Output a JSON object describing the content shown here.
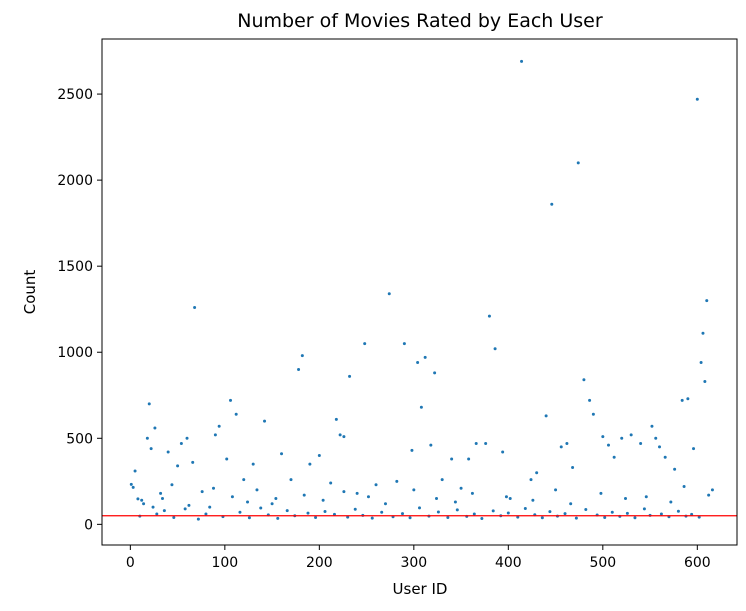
{
  "chart_data": {
    "type": "scatter",
    "title": "Number of Movies Rated by Each User",
    "xlabel": "User ID",
    "ylabel": "Count",
    "xlim": [
      -30,
      642
    ],
    "ylim": [
      -120,
      2820
    ],
    "xticks": [
      0,
      100,
      200,
      300,
      400,
      500,
      600
    ],
    "yticks": [
      0,
      500,
      1000,
      1500,
      2000,
      2500
    ],
    "grid": false,
    "reference_line": {
      "orientation": "horizontal",
      "y": 50,
      "color": "#ff0000"
    },
    "series": [
      {
        "color": "#1f77b4",
        "points": [
          [
            1,
            232
          ],
          [
            3,
            215
          ],
          [
            5,
            310
          ],
          [
            8,
            148
          ],
          [
            10,
            48
          ],
          [
            12,
            140
          ],
          [
            20,
            700
          ],
          [
            26,
            560
          ],
          [
            18,
            500
          ],
          [
            22,
            440
          ],
          [
            34,
            150
          ],
          [
            40,
            420
          ],
          [
            50,
            340
          ],
          [
            54,
            470
          ],
          [
            60,
            500
          ],
          [
            66,
            360
          ],
          [
            68,
            1260
          ],
          [
            76,
            190
          ],
          [
            84,
            100
          ],
          [
            90,
            520
          ],
          [
            94,
            570
          ],
          [
            102,
            380
          ],
          [
            106,
            720
          ],
          [
            112,
            640
          ],
          [
            120,
            260
          ],
          [
            130,
            350
          ],
          [
            142,
            600
          ],
          [
            150,
            120
          ],
          [
            160,
            410
          ],
          [
            170,
            260
          ],
          [
            178,
            900
          ],
          [
            182,
            980
          ],
          [
            190,
            350
          ],
          [
            200,
            400
          ],
          [
            212,
            240
          ],
          [
            218,
            610
          ],
          [
            222,
            520
          ],
          [
            226,
            510
          ],
          [
            232,
            860
          ],
          [
            240,
            180
          ],
          [
            248,
            1050
          ],
          [
            260,
            230
          ],
          [
            274,
            1340
          ],
          [
            282,
            250
          ],
          [
            290,
            1050
          ],
          [
            298,
            430
          ],
          [
            304,
            940
          ],
          [
            308,
            680
          ],
          [
            312,
            970
          ],
          [
            318,
            460
          ],
          [
            322,
            880
          ],
          [
            330,
            260
          ],
          [
            340,
            380
          ],
          [
            350,
            210
          ],
          [
            358,
            380
          ],
          [
            366,
            470
          ],
          [
            376,
            470
          ],
          [
            380,
            1210
          ],
          [
            386,
            1020
          ],
          [
            394,
            420
          ],
          [
            402,
            150
          ],
          [
            414,
            2690
          ],
          [
            424,
            260
          ],
          [
            430,
            300
          ],
          [
            440,
            630
          ],
          [
            446,
            1860
          ],
          [
            456,
            450
          ],
          [
            462,
            470
          ],
          [
            468,
            330
          ],
          [
            474,
            2100
          ],
          [
            480,
            840
          ],
          [
            486,
            720
          ],
          [
            490,
            640
          ],
          [
            500,
            510
          ],
          [
            506,
            460
          ],
          [
            512,
            390
          ],
          [
            520,
            500
          ],
          [
            530,
            520
          ],
          [
            540,
            470
          ],
          [
            552,
            570
          ],
          [
            556,
            500
          ],
          [
            560,
            450
          ],
          [
            566,
            390
          ],
          [
            576,
            320
          ],
          [
            584,
            720
          ],
          [
            590,
            730
          ],
          [
            596,
            440
          ],
          [
            600,
            2470
          ],
          [
            604,
            940
          ],
          [
            606,
            1110
          ],
          [
            608,
            830
          ],
          [
            610,
            1300
          ],
          [
            616,
            200
          ],
          [
            28,
            60
          ],
          [
            36,
            80
          ],
          [
            46,
            40
          ],
          [
            58,
            90
          ],
          [
            72,
            30
          ],
          [
            80,
            60
          ],
          [
            98,
            45
          ],
          [
            116,
            70
          ],
          [
            126,
            38
          ],
          [
            138,
            95
          ],
          [
            146,
            55
          ],
          [
            156,
            35
          ],
          [
            166,
            80
          ],
          [
            174,
            50
          ],
          [
            188,
            65
          ],
          [
            196,
            40
          ],
          [
            206,
            75
          ],
          [
            216,
            58
          ],
          [
            230,
            42
          ],
          [
            238,
            88
          ],
          [
            246,
            52
          ],
          [
            256,
            36
          ],
          [
            266,
            70
          ],
          [
            278,
            44
          ],
          [
            288,
            62
          ],
          [
            296,
            38
          ],
          [
            306,
            96
          ],
          [
            316,
            48
          ],
          [
            326,
            72
          ],
          [
            336,
            40
          ],
          [
            346,
            84
          ],
          [
            356,
            46
          ],
          [
            364,
            60
          ],
          [
            372,
            34
          ],
          [
            384,
            78
          ],
          [
            392,
            50
          ],
          [
            400,
            66
          ],
          [
            410,
            42
          ],
          [
            418,
            92
          ],
          [
            428,
            56
          ],
          [
            436,
            38
          ],
          [
            444,
            74
          ],
          [
            452,
            48
          ],
          [
            460,
            62
          ],
          [
            472,
            36
          ],
          [
            482,
            86
          ],
          [
            494,
            54
          ],
          [
            502,
            40
          ],
          [
            510,
            70
          ],
          [
            518,
            46
          ],
          [
            526,
            64
          ],
          [
            534,
            38
          ],
          [
            544,
            90
          ],
          [
            550,
            52
          ],
          [
            562,
            60
          ],
          [
            570,
            44
          ],
          [
            580,
            76
          ],
          [
            588,
            48
          ],
          [
            594,
            58
          ],
          [
            602,
            42
          ],
          [
            14,
            120
          ],
          [
            24,
            100
          ],
          [
            32,
            180
          ],
          [
            44,
            230
          ],
          [
            62,
            110
          ],
          [
            88,
            210
          ],
          [
            108,
            160
          ],
          [
            124,
            130
          ],
          [
            134,
            200
          ],
          [
            154,
            150
          ],
          [
            184,
            170
          ],
          [
            204,
            140
          ],
          [
            226,
            190
          ],
          [
            252,
            160
          ],
          [
            270,
            120
          ],
          [
            300,
            200
          ],
          [
            324,
            150
          ],
          [
            344,
            130
          ],
          [
            362,
            180
          ],
          [
            398,
            160
          ],
          [
            426,
            140
          ],
          [
            450,
            200
          ],
          [
            466,
            120
          ],
          [
            498,
            180
          ],
          [
            524,
            150
          ],
          [
            546,
            160
          ],
          [
            572,
            130
          ],
          [
            586,
            220
          ],
          [
            612,
            170
          ]
        ]
      }
    ]
  }
}
